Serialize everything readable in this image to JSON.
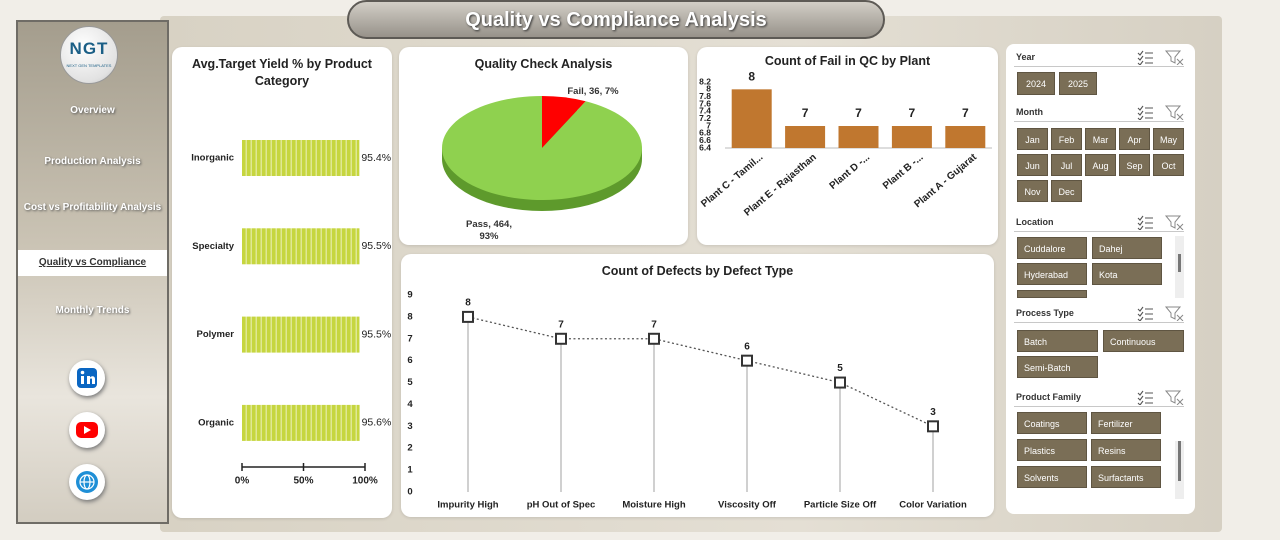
{
  "header": {
    "title": "Quality vs Compliance Analysis"
  },
  "sidebar": {
    "logo": "NGT",
    "logo_tagline": "NEXT GEN TEMPLATES",
    "nav": [
      "Overview",
      "Production Analysis",
      "Cost vs Profitability Analysis",
      "Quality vs Compliance",
      "Monthly Trends"
    ],
    "active": 3
  },
  "slicers": [
    {
      "title": "Year",
      "items": [
        "2024",
        "2025"
      ]
    },
    {
      "title": "Month",
      "items": [
        "Jan",
        "Feb",
        "Mar",
        "Apr",
        "May",
        "Jun",
        "Jul",
        "Aug",
        "Sep",
        "Oct",
        "Nov",
        "Dec"
      ]
    },
    {
      "title": "Location",
      "items": [
        "Cuddalore",
        "Dahej",
        "Hyderabad",
        "Kota"
      ]
    },
    {
      "title": "Process Type",
      "items": [
        "Batch",
        "Continuous",
        "Semi-Batch"
      ]
    },
    {
      "title": "Product Family",
      "items": [
        "Coatings",
        "Fertilizer",
        "Plastics",
        "Resins",
        "Solvents",
        "Surfactants"
      ]
    }
  ],
  "chart_data": [
    {
      "type": "bar",
      "orientation": "horizontal",
      "title": "Avg.Target Yield % by Product Category",
      "categories": [
        "Inorganic",
        "Specialty",
        "Polymer",
        "Organic"
      ],
      "values": [
        95.4,
        95.5,
        95.5,
        95.6
      ],
      "value_labels": [
        "95.4%",
        "95.5%",
        "95.5%",
        "95.6%"
      ],
      "color": "#c6d63f",
      "xlim": [
        0,
        100
      ],
      "xticks": [
        {
          "value": 0,
          "label": "0%"
        },
        {
          "value": 50,
          "label": "50%"
        },
        {
          "value": 100,
          "label": "100%"
        }
      ]
    },
    {
      "type": "pie",
      "title": "Quality Check Analysis",
      "categories": [
        "Fail",
        "Pass"
      ],
      "values": [
        36,
        464
      ],
      "value_labels": [
        "Fail, 36, 7%",
        "Pass, 464, 93%"
      ],
      "colors": [
        "#ff0000",
        "#8fd14f"
      ]
    },
    {
      "type": "bar",
      "title": "Count of Fail in QC by Plant",
      "categories": [
        "Plant C - Tamil...",
        "Plant E - Rajasthan",
        "Plant D -...",
        "Plant B -...",
        "Plant A - Gujarat"
      ],
      "values": [
        8,
        7,
        7,
        7,
        7
      ],
      "color": "#c0772f",
      "ylim": [
        6.4,
        8.2
      ],
      "yticks": [
        6.4,
        6.6,
        6.8,
        7,
        7.2,
        7.4,
        7.6,
        7.8,
        8,
        8.2
      ]
    },
    {
      "type": "line",
      "title": "Count of Defects by Defect Type",
      "categories": [
        "Impurity High",
        "pH Out of Spec",
        "Moisture High",
        "Viscosity Off",
        "Particle Size Off",
        "Color Variation"
      ],
      "values": [
        8,
        7,
        7,
        6,
        5,
        3
      ],
      "color": "#555555",
      "ylim": [
        0,
        9
      ],
      "yticks": [
        0,
        1,
        2,
        3,
        4,
        5,
        6,
        7,
        8,
        9
      ]
    }
  ]
}
